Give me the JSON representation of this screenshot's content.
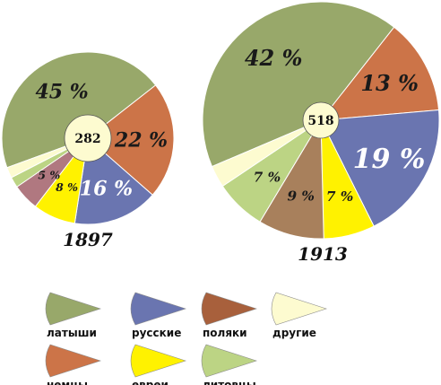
{
  "chart_data": [
    {
      "type": "pie",
      "title": "1897",
      "total": "282",
      "slices": [
        {
          "name": "латыши",
          "value": 45,
          "label": "45 %"
        },
        {
          "name": "немцы",
          "value": 22,
          "label": "22 %"
        },
        {
          "name": "русские",
          "value": 16,
          "label": "16 %"
        },
        {
          "name": "евреи",
          "value": 8,
          "label": "8 %"
        },
        {
          "name": "поляки",
          "value": 5,
          "label": "5 %"
        },
        {
          "name": "литовцы",
          "value": 2,
          "label": ""
        },
        {
          "name": "другие",
          "value": 2,
          "label": ""
        }
      ]
    },
    {
      "type": "pie",
      "title": "1913",
      "total": "518",
      "slices": [
        {
          "name": "латыши",
          "value": 42,
          "label": "42 %"
        },
        {
          "name": "немцы",
          "value": 13,
          "label": "13 %"
        },
        {
          "name": "русские",
          "value": 19,
          "label": "19 %"
        },
        {
          "name": "евреи",
          "value": 7,
          "label": "7 %"
        },
        {
          "name": "поляки",
          "value": 9,
          "label": "9 %"
        },
        {
          "name": "литовцы",
          "value": 7,
          "label": "7 %"
        },
        {
          "name": "другие",
          "value": 3,
          "label": ""
        }
      ]
    }
  ],
  "legend": [
    {
      "name": "латыши",
      "color": "#98a86a"
    },
    {
      "name": "русские",
      "color": "#6a75b0"
    },
    {
      "name": "поляки",
      "color": "#a8603c"
    },
    {
      "name": "другие",
      "color": "#fdfbd0"
    },
    {
      "name": "немцы",
      "color": "#cc7448"
    },
    {
      "name": "евреи",
      "color": "#fff200"
    },
    {
      "name": "литовцы",
      "color": "#bcd484"
    }
  ],
  "colors": {
    "латыши": "#98a86a",
    "немцы": "#cc7448",
    "русские": "#6a75b0",
    "евреи": "#fff200",
    "поляки": "#b07880",
    "литовцы": "#bcd484",
    "другие": "#fdfbd0"
  },
  "colors_1913": {
    "поляки": "#a8805c"
  }
}
